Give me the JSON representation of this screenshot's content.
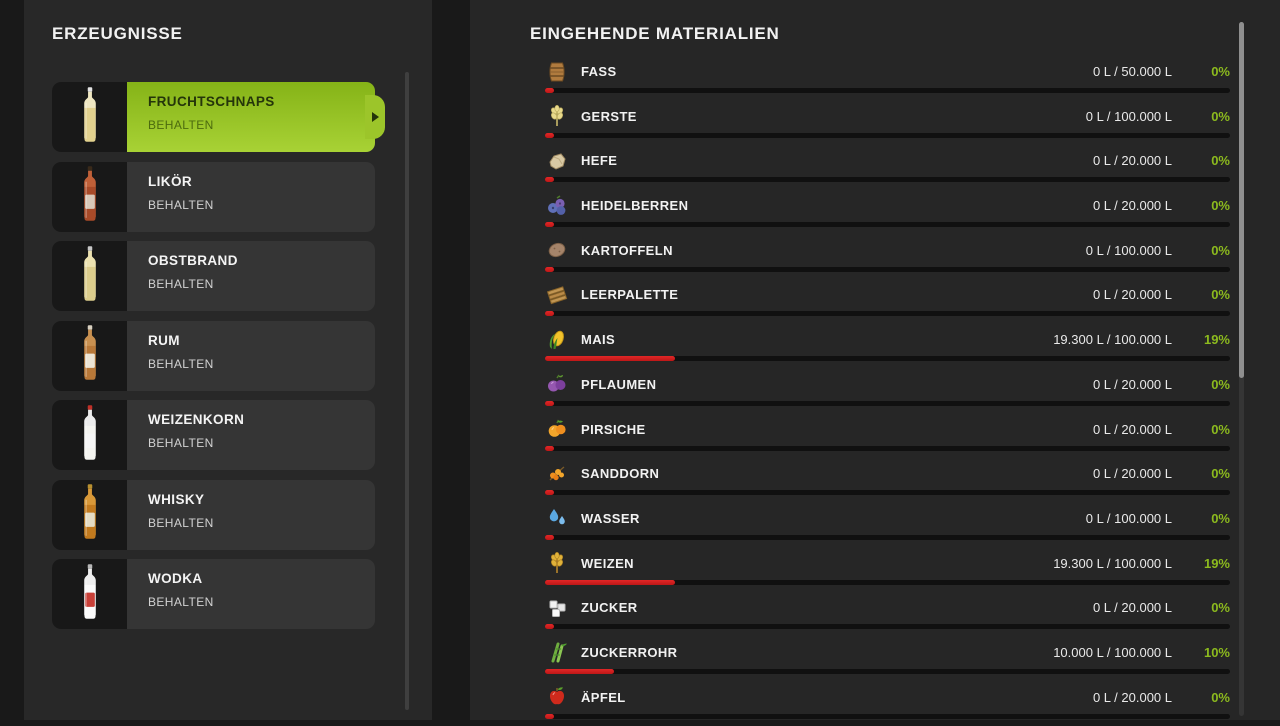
{
  "left_panel": {
    "title": "ERZEUGNISSE",
    "products": [
      {
        "name": "FRUCHTSCHNAPS",
        "mode": "BEHALTEN",
        "icon": "bottle-fruchtschnaps",
        "selected": true
      },
      {
        "name": "LIKÖR",
        "mode": "BEHALTEN",
        "icon": "bottle-likoer",
        "selected": false
      },
      {
        "name": "OBSTBRAND",
        "mode": "BEHALTEN",
        "icon": "bottle-obstbrand",
        "selected": false
      },
      {
        "name": "RUM",
        "mode": "BEHALTEN",
        "icon": "bottle-rum",
        "selected": false
      },
      {
        "name": "WEIZENKORN",
        "mode": "BEHALTEN",
        "icon": "bottle-weizenkorn",
        "selected": false
      },
      {
        "name": "WHISKY",
        "mode": "BEHALTEN",
        "icon": "bottle-whisky",
        "selected": false
      },
      {
        "name": "WODKA",
        "mode": "BEHALTEN",
        "icon": "bottle-wodka",
        "selected": false
      }
    ]
  },
  "right_panel": {
    "title": "EINGEHENDE MATERIALIEN",
    "materials": [
      {
        "name": "FASS",
        "icon": "barrel",
        "amount": "0 L / 50.000 L",
        "percent_label": "0%",
        "percent": 0
      },
      {
        "name": "GERSTE",
        "icon": "barley",
        "amount": "0 L / 100.000 L",
        "percent_label": "0%",
        "percent": 0
      },
      {
        "name": "HEFE",
        "icon": "yeast",
        "amount": "0 L / 20.000 L",
        "percent_label": "0%",
        "percent": 0
      },
      {
        "name": "HEIDELBERREN",
        "icon": "blueberries",
        "amount": "0 L / 20.000 L",
        "percent_label": "0%",
        "percent": 0
      },
      {
        "name": "KARTOFFELN",
        "icon": "potato",
        "amount": "0 L / 100.000 L",
        "percent_label": "0%",
        "percent": 0
      },
      {
        "name": "LEERPALETTE",
        "icon": "pallet",
        "amount": "0 L / 20.000 L",
        "percent_label": "0%",
        "percent": 0
      },
      {
        "name": "MAIS",
        "icon": "corn",
        "amount": "19.300 L / 100.000 L",
        "percent_label": "19%",
        "percent": 19
      },
      {
        "name": "PFLAUMEN",
        "icon": "plums",
        "amount": "0 L / 20.000 L",
        "percent_label": "0%",
        "percent": 0
      },
      {
        "name": "PIRSICHE",
        "icon": "peach",
        "amount": "0 L / 20.000 L",
        "percent_label": "0%",
        "percent": 0
      },
      {
        "name": "SANDDORN",
        "icon": "seaberry",
        "amount": "0 L / 20.000 L",
        "percent_label": "0%",
        "percent": 0
      },
      {
        "name": "WASSER",
        "icon": "water",
        "amount": "0 L / 100.000 L",
        "percent_label": "0%",
        "percent": 0
      },
      {
        "name": "WEIZEN",
        "icon": "wheat",
        "amount": "19.300 L / 100.000 L",
        "percent_label": "19%",
        "percent": 19
      },
      {
        "name": "ZUCKER",
        "icon": "sugar",
        "amount": "0 L / 20.000 L",
        "percent_label": "0%",
        "percent": 0
      },
      {
        "name": "ZUCKERROHR",
        "icon": "sugarcane",
        "amount": "10.000 L / 100.000 L",
        "percent_label": "10%",
        "percent": 10
      },
      {
        "name": "ÄPFEL",
        "icon": "apple",
        "amount": "0 L / 20.000 L",
        "percent_label": "0%",
        "percent": 0
      }
    ]
  },
  "colors": {
    "accent_green": "#9cc52a",
    "percent_green": "#8cba1e",
    "bar_red": "#d42020"
  }
}
